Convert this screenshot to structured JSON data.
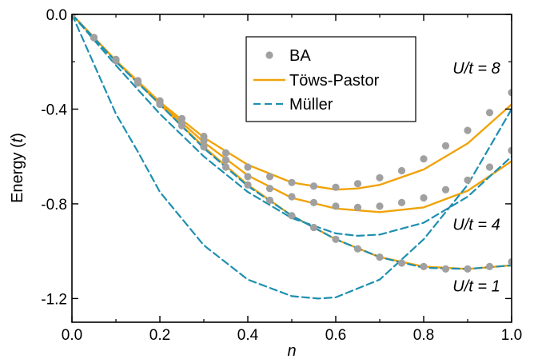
{
  "chart_data": {
    "type": "line",
    "xlabel": "n",
    "ylabel_text": "Energy (",
    "ylabel_unit": "t",
    "ylabel_close": ")",
    "xlim": [
      0,
      1
    ],
    "ylim": [
      -1.3,
      0.0
    ],
    "x_ticks": [
      0.0,
      0.2,
      0.4,
      0.6,
      0.8,
      1.0
    ],
    "x_tick_labels": [
      "0.0",
      "0.2",
      "0.4",
      "0.6",
      "0.8",
      "1.0"
    ],
    "y_ticks": [
      0.0,
      -0.4,
      -0.8,
      -1.2
    ],
    "y_tick_labels": [
      "0.0",
      "-0.4",
      "-0.8",
      "-1.2"
    ],
    "grid": false,
    "legend": {
      "position": "top-center",
      "entries": [
        {
          "label": "BA",
          "style": "marker",
          "color": "#a0a0a0"
        },
        {
          "label": "Töws-Pastor",
          "style": "solid",
          "color": "#f0a30a"
        },
        {
          "label": "Müller",
          "style": "dashed",
          "color": "#1e8fb0"
        }
      ]
    },
    "annotations": [
      {
        "text": "U/t = 8",
        "x": 0.92,
        "y": -0.25
      },
      {
        "text": "U/t = 4",
        "x": 0.92,
        "y": -0.91
      },
      {
        "text": "U/t = 1",
        "x": 0.92,
        "y": -1.17
      }
    ],
    "series": [
      {
        "name": "BA",
        "style": "marker",
        "color": "#a0a0a0",
        "group": "U/t = 8",
        "x": [
          0.0,
          0.05,
          0.1,
          0.15,
          0.2,
          0.25,
          0.3,
          0.35,
          0.4,
          0.45,
          0.5,
          0.55,
          0.6,
          0.65,
          0.7,
          0.75,
          0.8,
          0.85,
          0.9,
          0.95,
          1.0
        ],
        "y": [
          0.0,
          -0.098,
          -0.19,
          -0.28,
          -0.365,
          -0.44,
          -0.515,
          -0.585,
          -0.645,
          -0.685,
          -0.71,
          -0.725,
          -0.73,
          -0.715,
          -0.69,
          -0.66,
          -0.61,
          -0.555,
          -0.49,
          -0.415,
          -0.33
        ]
      },
      {
        "name": "BA",
        "style": "marker",
        "color": "#a0a0a0",
        "group": "U/t = 4",
        "x": [
          0.0,
          0.05,
          0.1,
          0.15,
          0.2,
          0.25,
          0.3,
          0.35,
          0.4,
          0.45,
          0.5,
          0.55,
          0.6,
          0.65,
          0.7,
          0.75,
          0.8,
          0.85,
          0.9,
          0.95,
          1.0
        ],
        "y": [
          0.0,
          -0.098,
          -0.195,
          -0.285,
          -0.375,
          -0.46,
          -0.535,
          -0.615,
          -0.685,
          -0.735,
          -0.77,
          -0.795,
          -0.81,
          -0.815,
          -0.81,
          -0.795,
          -0.775,
          -0.74,
          -0.7,
          -0.645,
          -0.575
        ]
      },
      {
        "name": "BA",
        "style": "marker",
        "color": "#a0a0a0",
        "group": "U/t = 1",
        "x": [
          0.0,
          0.05,
          0.1,
          0.15,
          0.2,
          0.25,
          0.3,
          0.35,
          0.4,
          0.45,
          0.5,
          0.55,
          0.6,
          0.65,
          0.7,
          0.75,
          0.8,
          0.85,
          0.9,
          0.95,
          1.0
        ],
        "y": [
          0.0,
          -0.098,
          -0.195,
          -0.29,
          -0.38,
          -0.47,
          -0.56,
          -0.645,
          -0.72,
          -0.785,
          -0.85,
          -0.9,
          -0.95,
          -0.99,
          -1.025,
          -1.05,
          -1.065,
          -1.075,
          -1.075,
          -1.065,
          -1.045
        ]
      },
      {
        "name": "Töws-Pastor",
        "style": "solid",
        "color": "#f0a30a",
        "group": "U/t = 8",
        "x": [
          0.0,
          0.1,
          0.2,
          0.3,
          0.4,
          0.5,
          0.6,
          0.65,
          0.7,
          0.8,
          0.9,
          1.0
        ],
        "y": [
          0.0,
          -0.195,
          -0.37,
          -0.52,
          -0.635,
          -0.71,
          -0.74,
          -0.735,
          -0.72,
          -0.655,
          -0.545,
          -0.38
        ]
      },
      {
        "name": "Töws-Pastor",
        "style": "solid",
        "color": "#f0a30a",
        "group": "U/t = 4",
        "x": [
          0.0,
          0.1,
          0.2,
          0.3,
          0.4,
          0.5,
          0.6,
          0.7,
          0.8,
          0.9,
          1.0
        ],
        "y": [
          0.0,
          -0.195,
          -0.375,
          -0.54,
          -0.68,
          -0.775,
          -0.82,
          -0.835,
          -0.815,
          -0.745,
          -0.62
        ]
      },
      {
        "name": "Töws-Pastor",
        "style": "solid",
        "color": "#f0a30a",
        "group": "U/t = 1",
        "x": [
          0.0,
          0.1,
          0.2,
          0.3,
          0.4,
          0.5,
          0.6,
          0.7,
          0.8,
          0.9,
          1.0
        ],
        "y": [
          0.0,
          -0.195,
          -0.38,
          -0.56,
          -0.72,
          -0.85,
          -0.95,
          -1.025,
          -1.065,
          -1.075,
          -1.06
        ]
      },
      {
        "name": "Müller",
        "style": "dashed",
        "color": "#1e8fb0",
        "group": "U/t = 8",
        "x": [
          0.0,
          0.1,
          0.2,
          0.3,
          0.4,
          0.5,
          0.6,
          0.7,
          0.8,
          0.9,
          1.0
        ],
        "y": [
          0.0,
          -0.2,
          -0.38,
          -0.565,
          -0.725,
          -0.85,
          -0.95,
          -1.025,
          -1.07,
          -1.075,
          -1.06
        ]
      },
      {
        "name": "Müller",
        "style": "dashed",
        "color": "#1e8fb0",
        "group": "U/t = 4",
        "x": [
          0.0,
          0.1,
          0.2,
          0.3,
          0.4,
          0.5,
          0.6,
          0.65,
          0.7,
          0.8,
          0.9,
          1.0
        ],
        "y": [
          0.0,
          -0.215,
          -0.42,
          -0.6,
          -0.75,
          -0.86,
          -0.925,
          -0.935,
          -0.93,
          -0.88,
          -0.77,
          -0.6
        ]
      },
      {
        "name": "Müller",
        "style": "dashed",
        "color": "#1e8fb0",
        "group": "U/t = 1",
        "x": [
          0.0,
          0.05,
          0.1,
          0.15,
          0.2,
          0.3,
          0.4,
          0.5,
          0.56,
          0.6,
          0.7,
          0.8,
          0.9,
          1.0
        ],
        "y": [
          0.0,
          -0.21,
          -0.42,
          -0.58,
          -0.75,
          -0.975,
          -1.12,
          -1.19,
          -1.2,
          -1.195,
          -1.12,
          -0.95,
          -0.72,
          -0.4
        ]
      }
    ]
  }
}
